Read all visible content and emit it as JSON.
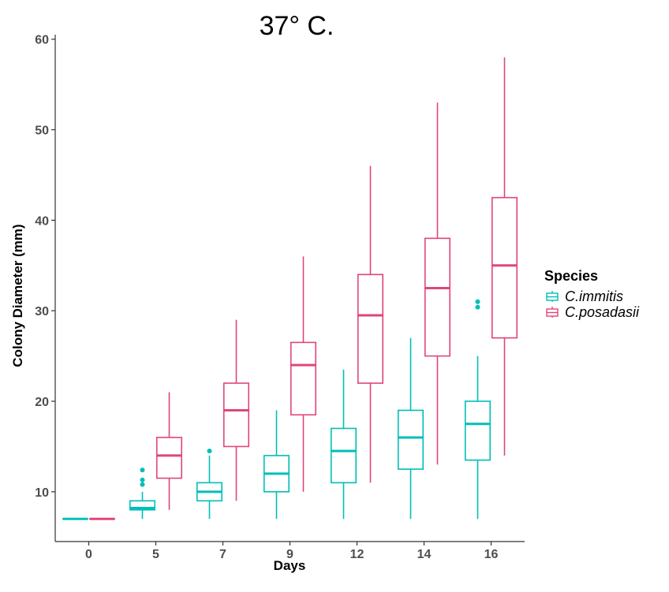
{
  "chart_data": {
    "type": "boxplot",
    "title": "37° C.",
    "xlabel": "Days",
    "ylabel": "Colony Diameter (mm)",
    "categories": [
      "0",
      "5",
      "7",
      "9",
      "12",
      "14",
      "16"
    ],
    "ylim": [
      4.5,
      60.5
    ],
    "yticks": [
      10,
      20,
      30,
      40,
      50,
      60
    ],
    "grid": false,
    "legend": {
      "title": "Species",
      "position": "right"
    },
    "series": [
      {
        "name": "C.immitis",
        "color": "#00bfb8",
        "boxes": [
          {
            "min": 7,
            "q1": 7,
            "median": 7,
            "q3": 7,
            "max": 7,
            "outliers": []
          },
          {
            "min": 7,
            "q1": 8,
            "median": 8.2,
            "q3": 9,
            "max": 10,
            "outliers": [
              10.8,
              11.3,
              12.4
            ]
          },
          {
            "min": 7,
            "q1": 9,
            "median": 10,
            "q3": 11,
            "max": 14,
            "outliers": [
              14.5
            ]
          },
          {
            "min": 7,
            "q1": 10,
            "median": 12,
            "q3": 14,
            "max": 19,
            "outliers": []
          },
          {
            "min": 7,
            "q1": 11,
            "median": 14.5,
            "q3": 17,
            "max": 23.5,
            "outliers": []
          },
          {
            "min": 7,
            "q1": 12.5,
            "median": 16,
            "q3": 19,
            "max": 27,
            "outliers": []
          },
          {
            "min": 7,
            "q1": 13.5,
            "median": 17.5,
            "q3": 20,
            "max": 25,
            "outliers": [
              30.4,
              31
            ]
          }
        ]
      },
      {
        "name": "C.posadasii",
        "color": "#e0457b",
        "boxes": [
          {
            "min": 7,
            "q1": 7,
            "median": 7,
            "q3": 7,
            "max": 7,
            "outliers": []
          },
          {
            "min": 8,
            "q1": 11.5,
            "median": 14,
            "q3": 16,
            "max": 21,
            "outliers": []
          },
          {
            "min": 9,
            "q1": 15,
            "median": 19,
            "q3": 22,
            "max": 29,
            "outliers": []
          },
          {
            "min": 10,
            "q1": 18.5,
            "median": 24,
            "q3": 26.5,
            "max": 36,
            "outliers": []
          },
          {
            "min": 11,
            "q1": 22,
            "median": 29.5,
            "q3": 34,
            "max": 46,
            "outliers": []
          },
          {
            "min": 13,
            "q1": 25,
            "median": 32.5,
            "q3": 38,
            "max": 53,
            "outliers": []
          },
          {
            "min": 14,
            "q1": 27,
            "median": 35,
            "q3": 42.5,
            "max": 58,
            "outliers": []
          }
        ]
      }
    ]
  }
}
